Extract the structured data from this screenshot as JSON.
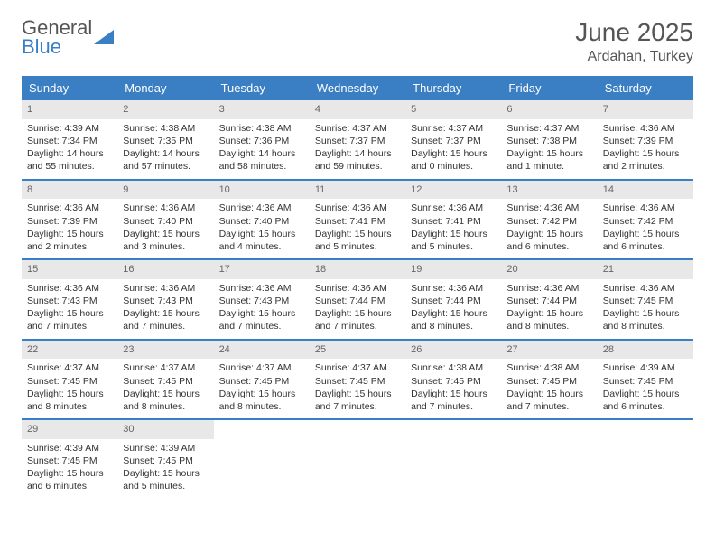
{
  "logo": {
    "line1": "General",
    "line2": "Blue"
  },
  "title": "June 2025",
  "subtitle": "Ardahan, Turkey",
  "colors": {
    "header_bg": "#3a7fc4",
    "header_text": "#ffffff",
    "daynum_bg": "#e8e8e8",
    "daynum_text": "#666666",
    "body_text": "#333333",
    "title_text": "#555555",
    "row_border": "#3a7fc4"
  },
  "day_names": [
    "Sunday",
    "Monday",
    "Tuesday",
    "Wednesday",
    "Thursday",
    "Friday",
    "Saturday"
  ],
  "days": [
    {
      "n": 1,
      "sr": "4:39 AM",
      "ss": "7:34 PM",
      "dl": "14 hours and 55 minutes."
    },
    {
      "n": 2,
      "sr": "4:38 AM",
      "ss": "7:35 PM",
      "dl": "14 hours and 57 minutes."
    },
    {
      "n": 3,
      "sr": "4:38 AM",
      "ss": "7:36 PM",
      "dl": "14 hours and 58 minutes."
    },
    {
      "n": 4,
      "sr": "4:37 AM",
      "ss": "7:37 PM",
      "dl": "14 hours and 59 minutes."
    },
    {
      "n": 5,
      "sr": "4:37 AM",
      "ss": "7:37 PM",
      "dl": "15 hours and 0 minutes."
    },
    {
      "n": 6,
      "sr": "4:37 AM",
      "ss": "7:38 PM",
      "dl": "15 hours and 1 minute."
    },
    {
      "n": 7,
      "sr": "4:36 AM",
      "ss": "7:39 PM",
      "dl": "15 hours and 2 minutes."
    },
    {
      "n": 8,
      "sr": "4:36 AM",
      "ss": "7:39 PM",
      "dl": "15 hours and 2 minutes."
    },
    {
      "n": 9,
      "sr": "4:36 AM",
      "ss": "7:40 PM",
      "dl": "15 hours and 3 minutes."
    },
    {
      "n": 10,
      "sr": "4:36 AM",
      "ss": "7:40 PM",
      "dl": "15 hours and 4 minutes."
    },
    {
      "n": 11,
      "sr": "4:36 AM",
      "ss": "7:41 PM",
      "dl": "15 hours and 5 minutes."
    },
    {
      "n": 12,
      "sr": "4:36 AM",
      "ss": "7:41 PM",
      "dl": "15 hours and 5 minutes."
    },
    {
      "n": 13,
      "sr": "4:36 AM",
      "ss": "7:42 PM",
      "dl": "15 hours and 6 minutes."
    },
    {
      "n": 14,
      "sr": "4:36 AM",
      "ss": "7:42 PM",
      "dl": "15 hours and 6 minutes."
    },
    {
      "n": 15,
      "sr": "4:36 AM",
      "ss": "7:43 PM",
      "dl": "15 hours and 7 minutes."
    },
    {
      "n": 16,
      "sr": "4:36 AM",
      "ss": "7:43 PM",
      "dl": "15 hours and 7 minutes."
    },
    {
      "n": 17,
      "sr": "4:36 AM",
      "ss": "7:43 PM",
      "dl": "15 hours and 7 minutes."
    },
    {
      "n": 18,
      "sr": "4:36 AM",
      "ss": "7:44 PM",
      "dl": "15 hours and 7 minutes."
    },
    {
      "n": 19,
      "sr": "4:36 AM",
      "ss": "7:44 PM",
      "dl": "15 hours and 8 minutes."
    },
    {
      "n": 20,
      "sr": "4:36 AM",
      "ss": "7:44 PM",
      "dl": "15 hours and 8 minutes."
    },
    {
      "n": 21,
      "sr": "4:36 AM",
      "ss": "7:45 PM",
      "dl": "15 hours and 8 minutes."
    },
    {
      "n": 22,
      "sr": "4:37 AM",
      "ss": "7:45 PM",
      "dl": "15 hours and 8 minutes."
    },
    {
      "n": 23,
      "sr": "4:37 AM",
      "ss": "7:45 PM",
      "dl": "15 hours and 8 minutes."
    },
    {
      "n": 24,
      "sr": "4:37 AM",
      "ss": "7:45 PM",
      "dl": "15 hours and 8 minutes."
    },
    {
      "n": 25,
      "sr": "4:37 AM",
      "ss": "7:45 PM",
      "dl": "15 hours and 7 minutes."
    },
    {
      "n": 26,
      "sr": "4:38 AM",
      "ss": "7:45 PM",
      "dl": "15 hours and 7 minutes."
    },
    {
      "n": 27,
      "sr": "4:38 AM",
      "ss": "7:45 PM",
      "dl": "15 hours and 7 minutes."
    },
    {
      "n": 28,
      "sr": "4:39 AM",
      "ss": "7:45 PM",
      "dl": "15 hours and 6 minutes."
    },
    {
      "n": 29,
      "sr": "4:39 AM",
      "ss": "7:45 PM",
      "dl": "15 hours and 6 minutes."
    },
    {
      "n": 30,
      "sr": "4:39 AM",
      "ss": "7:45 PM",
      "dl": "15 hours and 5 minutes."
    }
  ],
  "labels": {
    "sunrise": "Sunrise:",
    "sunset": "Sunset:",
    "daylight": "Daylight:"
  }
}
